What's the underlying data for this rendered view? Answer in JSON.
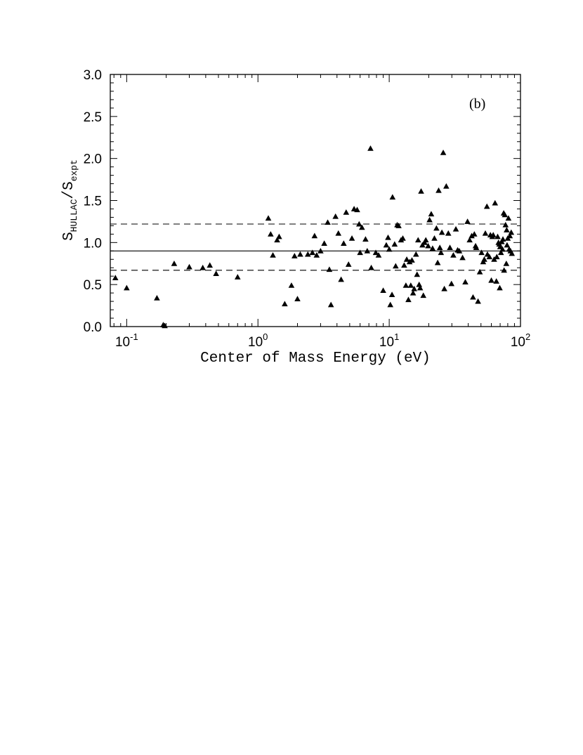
{
  "chart_data": {
    "type": "scatter",
    "panel_label": "(b)",
    "xlabel": "Center of Mass Energy (eV)",
    "ylabel": {
      "main": "S",
      "sub1": "HULLAC",
      "slash": "/",
      "main2": "S",
      "sub2": "expt"
    },
    "xscale": "log",
    "xlim": [
      0.075,
      100
    ],
    "ylim": [
      0,
      3
    ],
    "x_ticks": [
      {
        "base": "10",
        "exp": "-1",
        "value": 0.1
      },
      {
        "base": "10",
        "exp": "0",
        "value": 1
      },
      {
        "base": "10",
        "exp": "1",
        "value": 10
      },
      {
        "base": "10",
        "exp": "2",
        "value": 100
      }
    ],
    "y_ticks": [
      "0.0",
      "0.5",
      "1.0",
      "1.5",
      "2.0",
      "2.5",
      "3.0"
    ],
    "grid": false,
    "marker": "filled-triangle",
    "color": "#000000",
    "reference_lines": [
      {
        "style": "solid",
        "y": 0.9
      },
      {
        "style": "dashed",
        "y": 1.22
      },
      {
        "style": "dashed",
        "y": 0.67
      }
    ],
    "points": [
      [
        0.082,
        0.58
      ],
      [
        0.1,
        0.46
      ],
      [
        0.17,
        0.34
      ],
      [
        0.19,
        0.02
      ],
      [
        0.195,
        0.01
      ],
      [
        0.23,
        0.75
      ],
      [
        0.3,
        0.71
      ],
      [
        0.38,
        0.7
      ],
      [
        0.43,
        0.73
      ],
      [
        0.48,
        0.63
      ],
      [
        0.7,
        0.59
      ],
      [
        1.2,
        1.29
      ],
      [
        1.25,
        1.1
      ],
      [
        1.3,
        0.85
      ],
      [
        1.4,
        1.03
      ],
      [
        1.45,
        1.07
      ],
      [
        1.6,
        0.27
      ],
      [
        1.8,
        0.49
      ],
      [
        1.9,
        0.84
      ],
      [
        2.0,
        0.33
      ],
      [
        2.1,
        0.86
      ],
      [
        2.4,
        0.86
      ],
      [
        2.6,
        0.88
      ],
      [
        2.7,
        1.08
      ],
      [
        2.8,
        0.85
      ],
      [
        3.0,
        0.9
      ],
      [
        3.2,
        0.99
      ],
      [
        3.4,
        1.24
      ],
      [
        3.5,
        0.68
      ],
      [
        3.6,
        0.26
      ],
      [
        3.9,
        1.31
      ],
      [
        4.1,
        1.11
      ],
      [
        4.3,
        0.56
      ],
      [
        4.5,
        0.99
      ],
      [
        4.7,
        1.36
      ],
      [
        4.9,
        0.74
      ],
      [
        5.2,
        1.05
      ],
      [
        5.4,
        1.4
      ],
      [
        5.7,
        1.39
      ],
      [
        5.9,
        1.22
      ],
      [
        6.2,
        1.18
      ],
      [
        6.0,
        0.88
      ],
      [
        6.6,
        1.04
      ],
      [
        6.8,
        0.9
      ],
      [
        7.2,
        2.12
      ],
      [
        7.3,
        0.7
      ],
      [
        7.9,
        0.88
      ],
      [
        8.3,
        0.85
      ],
      [
        9.0,
        0.43
      ],
      [
        9.5,
        0.97
      ],
      [
        9.8,
        1.06
      ],
      [
        10.0,
        0.92
      ],
      [
        10.2,
        0.26
      ],
      [
        10.5,
        0.38
      ],
      [
        10.6,
        1.54
      ],
      [
        11.0,
        0.98
      ],
      [
        11.2,
        0.72
      ],
      [
        11.5,
        1.21
      ],
      [
        11.8,
        1.2
      ],
      [
        12.3,
        1.03
      ],
      [
        12.7,
        1.05
      ],
      [
        13.0,
        0.73
      ],
      [
        13.4,
        0.49
      ],
      [
        13.6,
        0.8
      ],
      [
        14.0,
        0.32
      ],
      [
        14.3,
        0.77
      ],
      [
        14.6,
        0.49
      ],
      [
        14.9,
        0.79
      ],
      [
        15.2,
        0.4
      ],
      [
        15.5,
        0.45
      ],
      [
        16.0,
        0.86
      ],
      [
        16.3,
        0.62
      ],
      [
        16.6,
        1.03
      ],
      [
        16.9,
        0.5
      ],
      [
        17.2,
        0.46
      ],
      [
        17.5,
        1.61
      ],
      [
        17.9,
        0.97
      ],
      [
        18.2,
        0.37
      ],
      [
        18.6,
        1.0
      ],
      [
        19.0,
        1.03
      ],
      [
        19.8,
        0.96
      ],
      [
        20.3,
        1.27
      ],
      [
        20.9,
        1.34
      ],
      [
        21.4,
        0.93
      ],
      [
        22.1,
        1.05
      ],
      [
        22.9,
        1.17
      ],
      [
        23.4,
        0.76
      ],
      [
        23.8,
        1.62
      ],
      [
        24.3,
        0.94
      ],
      [
        24.8,
        0.88
      ],
      [
        25.2,
        1.12
      ],
      [
        25.8,
        2.07
      ],
      [
        26.3,
        0.45
      ],
      [
        27.2,
        1.67
      ],
      [
        28.2,
        1.11
      ],
      [
        29.0,
        0.94
      ],
      [
        29.8,
        0.51
      ],
      [
        30.8,
        0.85
      ],
      [
        32.2,
        1.16
      ],
      [
        33.2,
        0.91
      ],
      [
        34.2,
        0.9
      ],
      [
        36.2,
        0.82
      ],
      [
        38.0,
        0.53
      ],
      [
        39.5,
        1.25
      ],
      [
        41.0,
        1.03
      ],
      [
        42.5,
        1.08
      ],
      [
        43.5,
        0.35
      ],
      [
        44.5,
        1.1
      ],
      [
        45.5,
        0.96
      ],
      [
        46.0,
        0.94
      ],
      [
        47.5,
        0.3
      ],
      [
        49.0,
        0.65
      ],
      [
        50.5,
        0.88
      ],
      [
        52.0,
        0.77
      ],
      [
        53.0,
        0.8
      ],
      [
        54.0,
        1.11
      ],
      [
        55.5,
        1.43
      ],
      [
        56.0,
        0.86
      ],
      [
        58.0,
        0.83
      ],
      [
        59.0,
        1.09
      ],
      [
        60.0,
        0.55
      ],
      [
        61.0,
        1.07
      ],
      [
        62.0,
        1.09
      ],
      [
        63.0,
        0.8
      ],
      [
        64.0,
        1.47
      ],
      [
        65.5,
        0.54
      ],
      [
        66.0,
        0.83
      ],
      [
        67.0,
        1.07
      ],
      [
        68.0,
        1.0
      ],
      [
        69.0,
        0.98
      ],
      [
        69.5,
        0.46
      ],
      [
        70.0,
        0.95
      ],
      [
        71.0,
        0.88
      ],
      [
        72.0,
        1.01
      ],
      [
        73.0,
        0.92
      ],
      [
        73.5,
        1.04
      ],
      [
        74.5,
        1.35
      ],
      [
        75.0,
        0.67
      ],
      [
        76.0,
        1.33
      ],
      [
        77.0,
        1.21
      ],
      [
        78.0,
        0.75
      ],
      [
        78.5,
        1.15
      ],
      [
        79.0,
        0.97
      ],
      [
        80.0,
        1.05
      ],
      [
        81.0,
        1.29
      ],
      [
        82.0,
        0.92
      ],
      [
        83.0,
        1.08
      ],
      [
        84.0,
        0.9
      ],
      [
        85.0,
        1.12
      ],
      [
        86.0,
        0.87
      ]
    ]
  }
}
